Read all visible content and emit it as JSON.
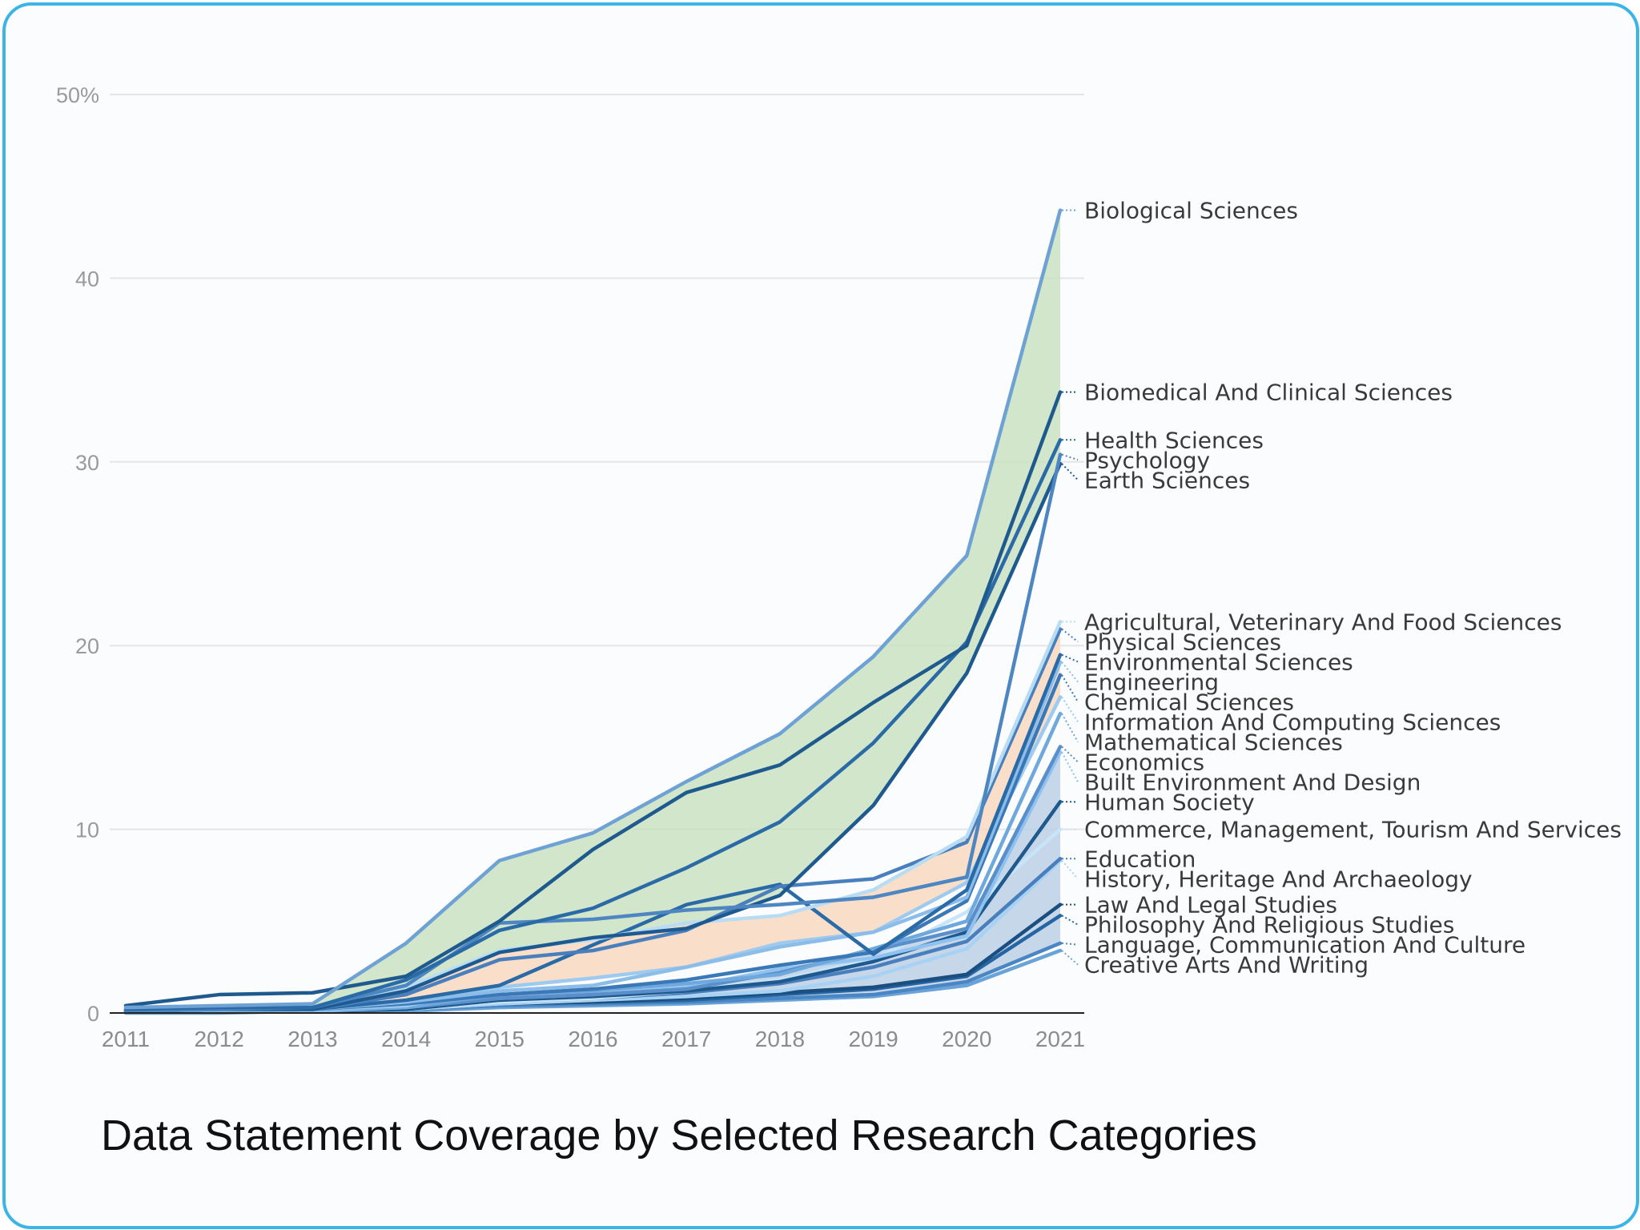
{
  "chart_data": {
    "type": "line",
    "title": "Data Statement Coverage by Selected Research Categories",
    "x": [
      2011,
      2012,
      2013,
      2014,
      2015,
      2016,
      2017,
      2018,
      2019,
      2020,
      2021
    ],
    "ylim": [
      0,
      50
    ],
    "yticks": [
      0,
      10,
      20,
      30,
      40,
      50
    ],
    "ytick_labels": [
      "0",
      "10",
      "20",
      "30",
      "40",
      "50%"
    ],
    "grid": true,
    "bands": [
      {
        "upper": "Biological Sciences",
        "lower": "Earth Sciences",
        "color": "#c9e2c2"
      },
      {
        "upper": "Agricultural, Veterinary And Food Sciences",
        "lower": "Information And Computing Sciences",
        "color": "#f8d9bf"
      },
      {
        "upper": "Economics",
        "lower": "Language, Communication And Culture",
        "color": "#bcd0e6"
      }
    ],
    "series": [
      {
        "name": "Biological Sciences",
        "color": "#6ea2d4",
        "values": [
          0.3,
          0.4,
          0.5,
          3.8,
          8.3,
          9.8,
          12.6,
          15.2,
          19.4,
          24.9,
          43.7
        ]
      },
      {
        "name": "Biomedical And Clinical Sciences",
        "color": "#1f5a8e",
        "values": [
          0.4,
          1.0,
          1.1,
          2.0,
          5.0,
          8.9,
          12.0,
          13.5,
          16.9,
          20.0,
          33.8
        ]
      },
      {
        "name": "Health Sciences",
        "color": "#2a6aa6",
        "values": [
          0.2,
          0.3,
          0.3,
          1.8,
          4.5,
          5.7,
          7.9,
          10.4,
          14.7,
          20.2,
          31.2
        ]
      },
      {
        "name": "Psychology",
        "color": "#4d86c1",
        "values": [
          0.1,
          0.2,
          0.3,
          1.5,
          4.9,
          5.1,
          5.6,
          5.9,
          6.3,
          7.4,
          30.4
        ]
      },
      {
        "name": "Earth Sciences",
        "color": "#1e5a8f",
        "values": [
          0.1,
          0.2,
          0.2,
          1.2,
          3.3,
          4.1,
          4.6,
          6.4,
          11.3,
          18.5,
          29.9
        ]
      },
      {
        "name": "Agricultural, Veterinary And Food Sciences",
        "color": "#b8dcf3",
        "values": [
          0.1,
          0.2,
          0.2,
          1.4,
          3.4,
          4.0,
          4.9,
          5.3,
          6.7,
          9.6,
          21.3
        ]
      },
      {
        "name": "Physical Sciences",
        "color": "#4a7fbd",
        "values": [
          0.1,
          0.2,
          0.2,
          1.0,
          2.9,
          3.4,
          4.5,
          6.9,
          7.3,
          9.3,
          20.9
        ]
      },
      {
        "name": "Environmental Sciences",
        "color": "#2a6aa6",
        "values": [
          0.1,
          0.2,
          0.2,
          0.7,
          1.5,
          3.7,
          5.9,
          7.0,
          3.2,
          6.7,
          19.5
        ]
      },
      {
        "name": "Engineering",
        "color": "#8bbde8",
        "values": [
          0.1,
          0.1,
          0.2,
          0.6,
          1.2,
          1.5,
          2.5,
          3.6,
          4.4,
          6.3,
          19.1
        ]
      },
      {
        "name": "Chemical Sciences",
        "color": "#3a78b8",
        "values": [
          0.1,
          0.1,
          0.2,
          0.5,
          1.0,
          1.3,
          1.8,
          2.6,
          3.3,
          6.1,
          18.4
        ]
      },
      {
        "name": "Information And Computing Sciences",
        "color": "#9fcaef",
        "values": [
          0.1,
          0.1,
          0.2,
          0.4,
          1.4,
          1.9,
          2.5,
          3.8,
          4.4,
          7.1,
          17.2
        ]
      },
      {
        "name": "Mathematical Sciences",
        "color": "#6fa8dc",
        "values": [
          0.1,
          0.1,
          0.2,
          0.3,
          1.0,
          1.2,
          1.6,
          2.1,
          3.5,
          5.0,
          16.3
        ]
      },
      {
        "name": "Economics",
        "color": "#5a8fcb",
        "values": [
          0.1,
          0.1,
          0.2,
          0.3,
          0.8,
          1.0,
          1.3,
          2.2,
          3.4,
          4.6,
          14.5
        ]
      },
      {
        "name": "Built Environment And Design",
        "color": "#8fc2ee",
        "values": [
          0.1,
          0.1,
          0.1,
          0.3,
          0.8,
          1.0,
          1.4,
          2.4,
          3.0,
          4.2,
          14.2
        ]
      },
      {
        "name": "Human Society",
        "color": "#1f5a8e",
        "values": [
          0.1,
          0.1,
          0.1,
          0.2,
          0.7,
          0.9,
          1.2,
          1.7,
          2.8,
          4.4,
          11.5
        ]
      },
      {
        "name": "Commerce, Management, Tourism And Services",
        "color": "#c7e4f8",
        "values": [
          0.1,
          0.1,
          0.1,
          0.2,
          0.6,
          0.8,
          1.2,
          1.8,
          2.9,
          5.5,
          10.0
        ]
      },
      {
        "name": "Education",
        "color": "#4a7fbd",
        "values": [
          0.1,
          0.1,
          0.1,
          0.2,
          0.6,
          0.8,
          1.1,
          1.6,
          2.5,
          3.9,
          8.4
        ]
      },
      {
        "name": "History, Heritage And Archaeology",
        "color": "#a8d2f3",
        "values": [
          0.1,
          0.1,
          0.1,
          0.2,
          0.5,
          0.7,
          0.9,
          1.2,
          2.0,
          3.5,
          8.3
        ]
      },
      {
        "name": "Law And Legal Studies",
        "color": "#1a4f80",
        "values": [
          0.1,
          0.1,
          0.1,
          0.2,
          0.5,
          0.6,
          0.8,
          1.1,
          1.4,
          2.1,
          5.9
        ]
      },
      {
        "name": "Philosophy And Religious Studies",
        "color": "#2565a3",
        "values": [
          0.1,
          0.1,
          0.1,
          0.2,
          0.5,
          0.6,
          0.7,
          1.0,
          1.3,
          2.0,
          5.3
        ]
      },
      {
        "name": "Language, Communication And Culture",
        "color": "#4a86c4",
        "values": [
          0.1,
          0.1,
          0.1,
          0.2,
          0.4,
          0.5,
          0.6,
          0.8,
          1.0,
          1.7,
          3.8
        ]
      },
      {
        "name": "Creative Arts And Writing",
        "color": "#6aa3d8",
        "values": [
          0.0,
          0.0,
          0.1,
          0.1,
          0.3,
          0.4,
          0.5,
          0.7,
          0.9,
          1.5,
          3.4
        ]
      }
    ]
  }
}
